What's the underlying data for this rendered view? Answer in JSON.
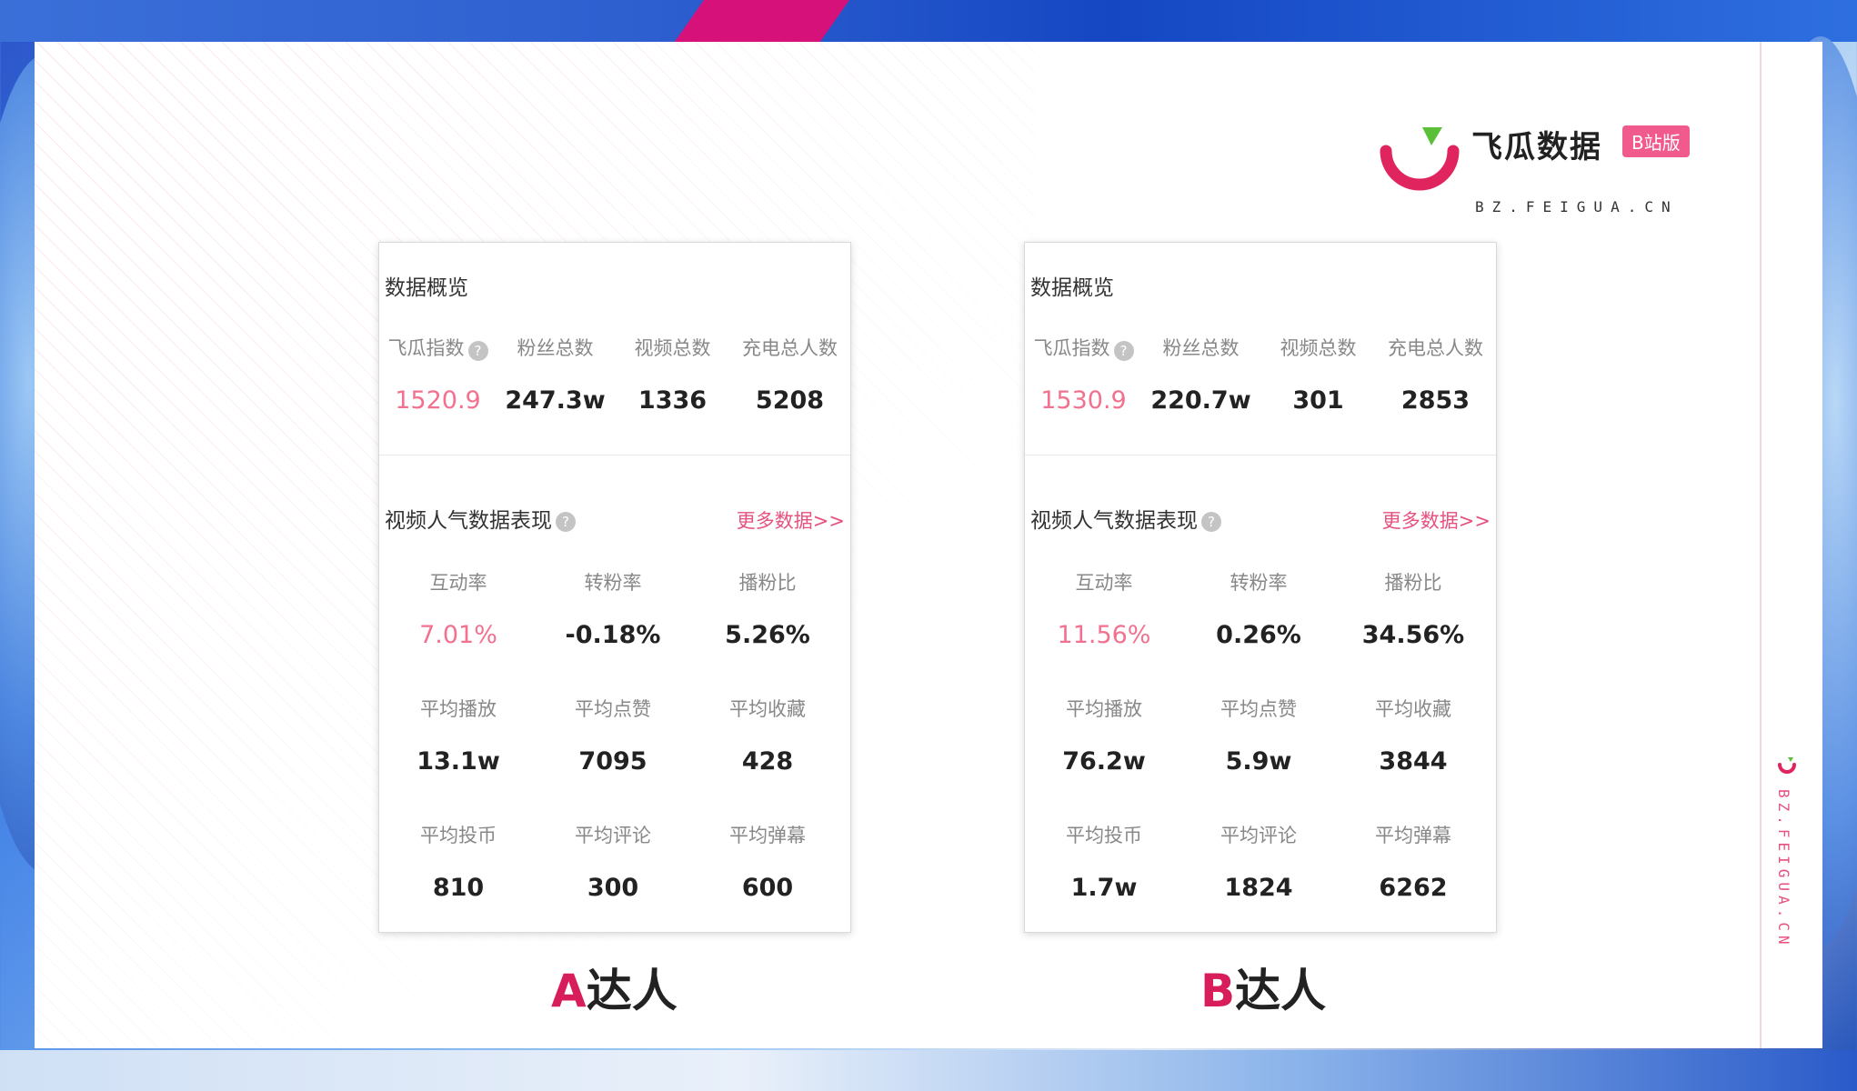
{
  "brand": {
    "name_cn": "飞瓜数据",
    "badge": "B站版",
    "url": "BZ.FEIGUA.CN",
    "side_url": "BZ.FEIGUA.CN",
    "colors": {
      "pink": "#f05a8c",
      "red": "#e0245e",
      "green": "#5bbf3a"
    }
  },
  "cards": [
    {
      "caption_letter": "A",
      "caption_rest": "达人",
      "overview": {
        "title": "数据概览",
        "stats": [
          {
            "label": "飞瓜指数",
            "value": "1520.9",
            "highlight": true,
            "help": true
          },
          {
            "label": "粉丝总数",
            "value": "247.3w"
          },
          {
            "label": "视频总数",
            "value": "1336"
          },
          {
            "label": "充电总人数",
            "value": "5208"
          }
        ]
      },
      "performance": {
        "title": "视频人气数据表现",
        "more": "更多数据>>",
        "metrics": [
          {
            "label": "互动率",
            "value": "7.01%",
            "highlight": true
          },
          {
            "label": "转粉率",
            "value": "-0.18%"
          },
          {
            "label": "播粉比",
            "value": "5.26%"
          },
          {
            "label": "平均播放",
            "value": "13.1w"
          },
          {
            "label": "平均点赞",
            "value": "7095"
          },
          {
            "label": "平均收藏",
            "value": "428"
          },
          {
            "label": "平均投币",
            "value": "810"
          },
          {
            "label": "平均评论",
            "value": "300"
          },
          {
            "label": "平均弹幕",
            "value": "600"
          }
        ]
      }
    },
    {
      "caption_letter": "B",
      "caption_rest": "达人",
      "overview": {
        "title": "数据概览",
        "stats": [
          {
            "label": "飞瓜指数",
            "value": "1530.9",
            "highlight": true,
            "help": true
          },
          {
            "label": "粉丝总数",
            "value": "220.7w"
          },
          {
            "label": "视频总数",
            "value": "301"
          },
          {
            "label": "充电总人数",
            "value": "2853"
          }
        ]
      },
      "performance": {
        "title": "视频人气数据表现",
        "more": "更多数据>>",
        "metrics": [
          {
            "label": "互动率",
            "value": "11.56%",
            "highlight": true
          },
          {
            "label": "转粉率",
            "value": "0.26%"
          },
          {
            "label": "播粉比",
            "value": "34.56%"
          },
          {
            "label": "平均播放",
            "value": "76.2w"
          },
          {
            "label": "平均点赞",
            "value": "5.9w"
          },
          {
            "label": "平均收藏",
            "value": "3844"
          },
          {
            "label": "平均投币",
            "value": "1.7w"
          },
          {
            "label": "平均评论",
            "value": "1824"
          },
          {
            "label": "平均弹幕",
            "value": "6262"
          }
        ]
      }
    }
  ]
}
